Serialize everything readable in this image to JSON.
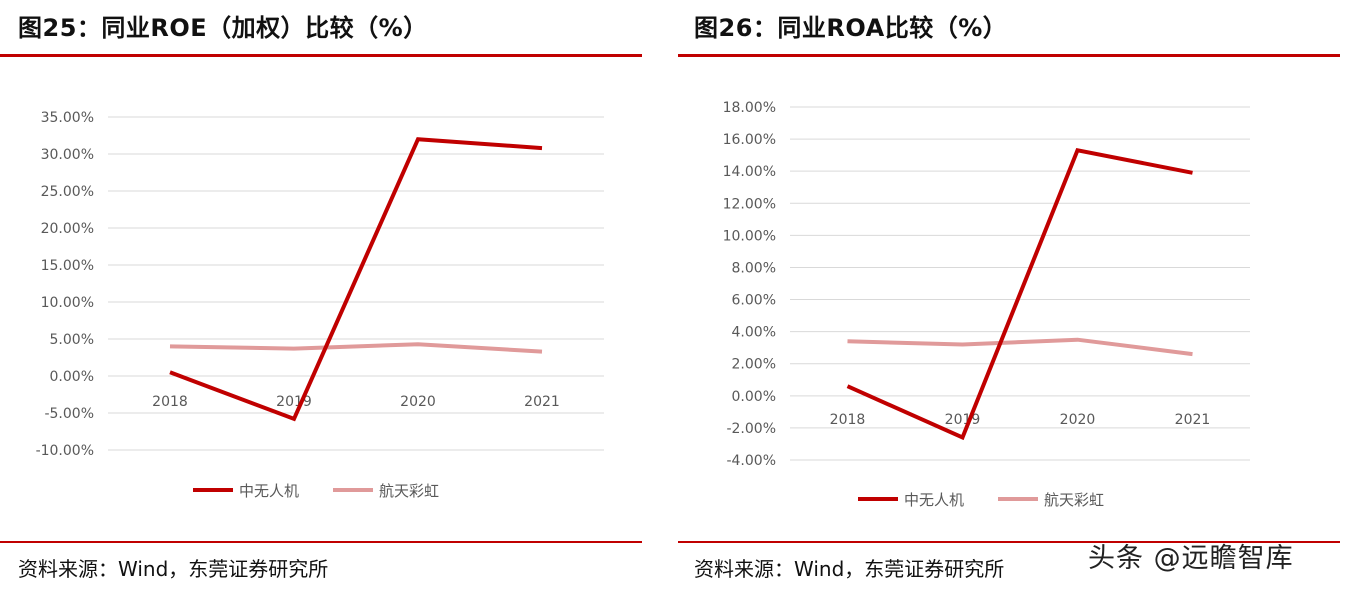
{
  "colors": {
    "rule": "#c00000",
    "series_primary": "#c00000",
    "series_secondary": "#e09a9a",
    "grid": "#d9d9d9"
  },
  "watermark": "头条 @远瞻智库",
  "chart_data": [
    {
      "type": "line",
      "title": "图25：同业ROE（加权）比较（%）",
      "source": "资料来源：Wind，东莞证券研究所",
      "categories": [
        "2018",
        "2019",
        "2020",
        "2021"
      ],
      "y_ticks": [
        "35.00%",
        "30.00%",
        "25.00%",
        "20.00%",
        "15.00%",
        "10.00%",
        "5.00%",
        "0.00%",
        "-5.00%",
        "-10.00%"
      ],
      "ylim": [
        -10,
        35
      ],
      "grid": true,
      "legend_position": "bottom",
      "series": [
        {
          "name": "中无人机",
          "values": [
            0.5,
            -5.8,
            32.0,
            30.8
          ]
        },
        {
          "name": "航天彩虹",
          "values": [
            4.0,
            3.7,
            4.3,
            3.3
          ]
        }
      ]
    },
    {
      "type": "line",
      "title": "图26：同业ROA比较（%）",
      "source": "资料来源：Wind，东莞证券研究所",
      "categories": [
        "2018",
        "2019",
        "2020",
        "2021"
      ],
      "y_ticks": [
        "18.00%",
        "16.00%",
        "14.00%",
        "12.00%",
        "10.00%",
        "8.00%",
        "6.00%",
        "4.00%",
        "2.00%",
        "0.00%",
        "-2.00%",
        "-4.00%"
      ],
      "ylim": [
        -4,
        18
      ],
      "grid": true,
      "legend_position": "bottom",
      "series": [
        {
          "name": "中无人机",
          "values": [
            0.6,
            -2.6,
            15.3,
            13.9
          ]
        },
        {
          "name": "航天彩虹",
          "values": [
            3.4,
            3.2,
            3.5,
            2.6
          ]
        }
      ]
    }
  ]
}
